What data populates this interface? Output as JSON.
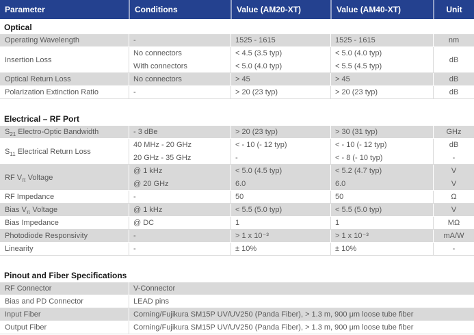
{
  "colors": {
    "header_bg": "#24418F",
    "shaded_row": "#D9D9D9",
    "body_text": "#595959",
    "title_text": "#1A1A1A"
  },
  "header": {
    "columns": [
      "Parameter",
      "Conditions",
      "Value (AM20-XT)",
      "Value (AM40-XT)",
      "Unit"
    ]
  },
  "sections": [
    {
      "title": "Optical",
      "type": "spec",
      "rows": [
        {
          "shaded": true,
          "param": "Operating Wavelength",
          "conditions": [
            "-"
          ],
          "am20": [
            "1525 - 1615"
          ],
          "am40": [
            "1525 - 1615"
          ],
          "unit": [
            "nm"
          ]
        },
        {
          "shaded": false,
          "param": "Insertion Loss",
          "conditions": [
            "No connectors",
            "With connectors"
          ],
          "am20": [
            "< 4.5 (3.5 typ)",
            "< 5.0 (4.0 typ)"
          ],
          "am40": [
            "< 5.0 (4.0 typ)",
            "< 5.5 (4.5 typ)"
          ],
          "unit": [
            "dB"
          ]
        },
        {
          "shaded": true,
          "param": "Optical Return Loss",
          "conditions": [
            "No connectors"
          ],
          "am20": [
            "> 45"
          ],
          "am40": [
            "> 45"
          ],
          "unit": [
            "dB"
          ]
        },
        {
          "shaded": false,
          "param": "Polarization Extinction Ratio",
          "conditions": [
            "-"
          ],
          "am20": [
            "> 20 (23 typ)"
          ],
          "am40": [
            "> 20 (23 typ)"
          ],
          "unit": [
            "dB"
          ]
        }
      ]
    },
    {
      "title": "Electrical – RF Port",
      "type": "spec",
      "rows": [
        {
          "shaded": true,
          "param": {
            "pre": "S",
            "sub": "21",
            "post": " Electro-Optic Bandwidth"
          },
          "conditions": [
            "- 3 dBe"
          ],
          "am20": [
            "> 20 (23 typ)"
          ],
          "am40": [
            "> 30 (31 typ)"
          ],
          "unit": [
            "GHz"
          ]
        },
        {
          "shaded": false,
          "param": {
            "pre": "S",
            "sub": "11",
            "post": " Electrical Return Loss"
          },
          "conditions": [
            "40 MHz - 20 GHz",
            "20 GHz - 35 GHz"
          ],
          "am20": [
            "< - 10 (- 12 typ)",
            "-"
          ],
          "am40": [
            "< - 10 (- 12 typ)",
            "< - 8 (- 10 typ)"
          ],
          "unit": [
            "dB",
            "-"
          ]
        },
        {
          "shaded": true,
          "param": {
            "pre": "RF V",
            "sub": "π",
            "post": " Voltage"
          },
          "conditions": [
            "@ 1 kHz",
            "@ 20 GHz"
          ],
          "am20": [
            "< 5.0 (4.5 typ)",
            "6.0"
          ],
          "am40": [
            "< 5.2 (4.7 typ)",
            "6.0"
          ],
          "unit": [
            "V",
            "V"
          ]
        },
        {
          "shaded": false,
          "param": "RF Impedance",
          "conditions": [
            "-"
          ],
          "am20": [
            "50"
          ],
          "am40": [
            "50"
          ],
          "unit": [
            "Ω"
          ]
        },
        {
          "shaded": true,
          "param": {
            "pre": "Bias V",
            "sub": "π",
            "post": " Voltage"
          },
          "conditions": [
            "@ 1 kHz"
          ],
          "am20": [
            "< 5.5 (5.0 typ)"
          ],
          "am40": [
            "< 5.5 (5.0 typ)"
          ],
          "unit": [
            "V"
          ]
        },
        {
          "shaded": false,
          "param": "Bias Impedance",
          "conditions": [
            "@ DC"
          ],
          "am20": [
            "1"
          ],
          "am40": [
            "1"
          ],
          "unit": [
            "MΩ"
          ]
        },
        {
          "shaded": true,
          "param": "Photodiode Responsivity",
          "conditions": [
            "-"
          ],
          "am20": [
            "> 1 x 10⁻³"
          ],
          "am40": [
            "> 1 x 10⁻³"
          ],
          "unit": [
            "mA/W"
          ]
        },
        {
          "shaded": false,
          "param": "Linearity",
          "conditions": [
            "-"
          ],
          "am20": [
            "± 10%"
          ],
          "am40": [
            "± 10%"
          ],
          "unit": [
            "-"
          ]
        }
      ]
    },
    {
      "title": "Pinout and Fiber Specifications",
      "type": "span",
      "rows": [
        {
          "shaded": true,
          "param": "RF Connector",
          "value": "V-Connector"
        },
        {
          "shaded": false,
          "param": "Bias and PD Connector",
          "value": "LEAD pins"
        },
        {
          "shaded": true,
          "param": "Input Fiber",
          "value": "Corning/Fujikura SM15P UV/UV250 (Panda Fiber), > 1.3 m, 900 μm loose tube fiber"
        },
        {
          "shaded": false,
          "param": "Output Fiber",
          "value": "Corning/Fujikura SM15P UV/UV250 (Panda Fiber), > 1.3 m, 900 μm loose tube fiber"
        }
      ]
    }
  ]
}
